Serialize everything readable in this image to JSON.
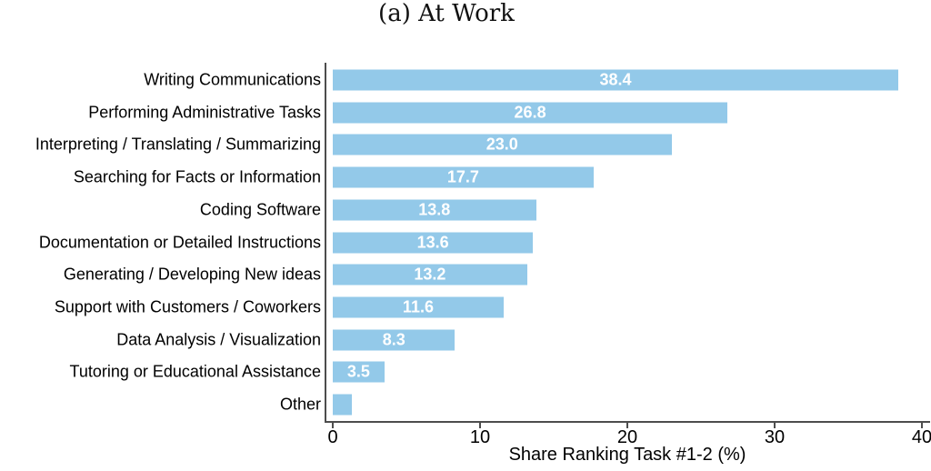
{
  "title": "(a) At Work",
  "colors": {
    "bar_fill": "#93C9E9",
    "axis_line": "#4d4d4d",
    "value_label": "#ffffff",
    "text": "#000000"
  },
  "chart_data": {
    "type": "bar",
    "orientation": "horizontal",
    "title": "(a) At Work",
    "xlabel": "Share Ranking Task #1-2 (%)",
    "xlim": [
      0,
      40
    ],
    "xticks": [
      "0",
      "10",
      "20",
      "30",
      "40"
    ],
    "grid": false,
    "legend": null,
    "categories": [
      "Writing Communications",
      "Performing Administrative Tasks",
      "Interpreting / Translating / Summarizing",
      "Searching for Facts or Information",
      "Coding Software",
      "Documentation or Detailed Instructions",
      "Generating / Developing New ideas",
      "Support with Customers / Coworkers",
      "Data Analysis / Visualization",
      "Tutoring or Educational Assistance",
      "Other"
    ],
    "values": [
      38.4,
      26.8,
      23.0,
      17.7,
      13.8,
      13.6,
      13.2,
      11.6,
      8.3,
      3.5,
      1.3
    ],
    "value_labels": [
      "38.4",
      "26.8",
      "23.0",
      "17.7",
      "13.8",
      "13.6",
      "13.2",
      "11.6",
      "8.3",
      "3.5",
      ""
    ]
  }
}
